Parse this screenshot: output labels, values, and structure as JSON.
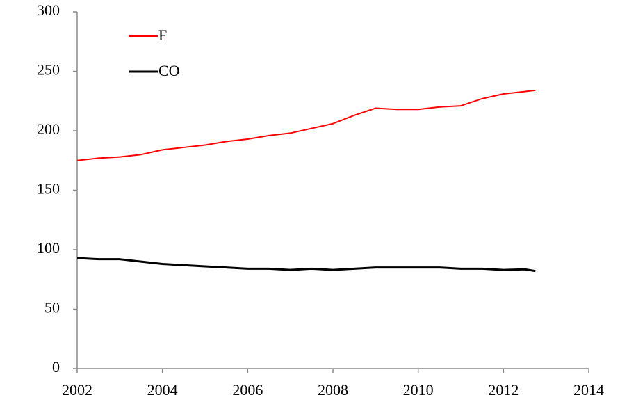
{
  "chart_data": {
    "type": "line",
    "x": [
      2002,
      2002.5,
      2003,
      2003.5,
      2004,
      2004.5,
      2005,
      2005.5,
      2006,
      2006.5,
      2007,
      2007.5,
      2008,
      2008.5,
      2009,
      2009.5,
      2010,
      2010.5,
      2011,
      2011.5,
      2012,
      2012.5,
      2012.75
    ],
    "series": [
      {
        "name": "F",
        "color": "#ff0000",
        "values": [
          175,
          177,
          178,
          180,
          184,
          186,
          188,
          191,
          193,
          196,
          198,
          202,
          206,
          213,
          219,
          218,
          218,
          220,
          221,
          227,
          231,
          233,
          234
        ]
      },
      {
        "name": "CO",
        "color": "#000000",
        "values": [
          93,
          92,
          92,
          90,
          88,
          87,
          86,
          85,
          84,
          84,
          83,
          84,
          83,
          84,
          85,
          85,
          85,
          85,
          84,
          84,
          83,
          83.5,
          82
        ]
      }
    ],
    "xlim": [
      2002,
      2014
    ],
    "xticks": [
      2002,
      2004,
      2006,
      2008,
      2010,
      2012,
      2014
    ],
    "ylim": [
      0,
      300
    ],
    "yticks": [
      0,
      50,
      100,
      150,
      200,
      250,
      300
    ],
    "legend": "upper-left",
    "grid": false
  }
}
